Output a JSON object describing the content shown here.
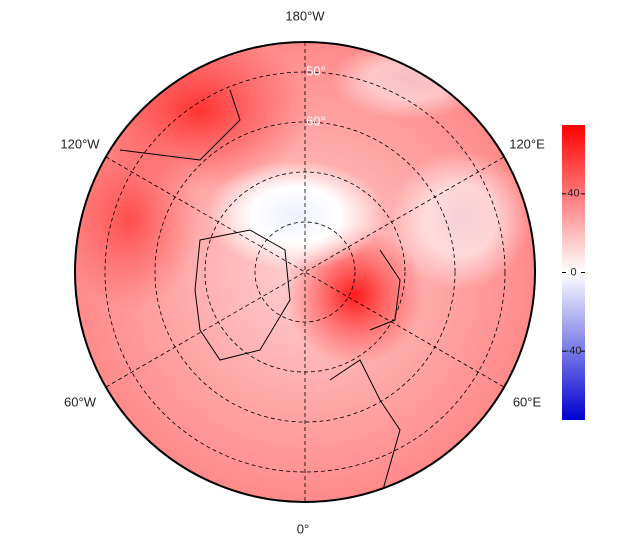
{
  "map": {
    "longitude_labels": [
      "180°W",
      "120°W",
      "120°E",
      "60°W",
      "60°E",
      "0°"
    ],
    "latitude_labels": [
      "50°",
      "60°"
    ],
    "colorbar": {
      "range": [
        -75,
        75
      ],
      "ticks": [
        -40,
        0,
        40
      ]
    }
  }
}
